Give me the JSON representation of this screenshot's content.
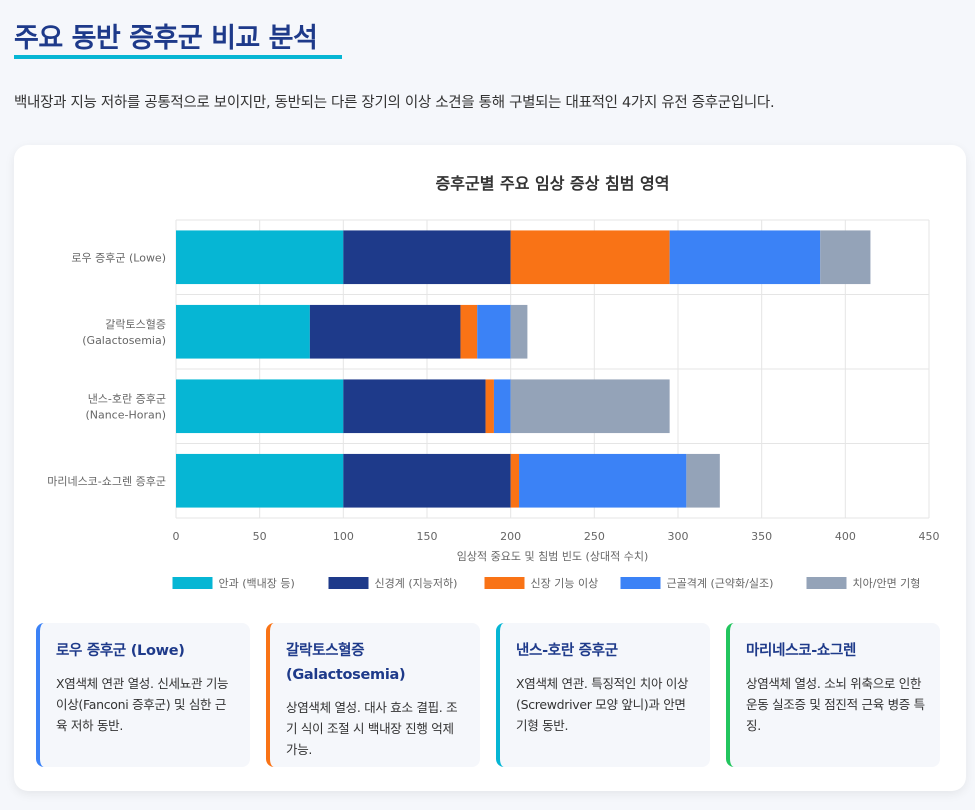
{
  "page": {
    "title": "주요 동반 증후군 비교 분석",
    "subtitle": "백내장과 지능 저하를 공통적으로 보이지만, 동반되는 다른 장기의 이상 소견을 통해 구별되는 대표적인 4가지 유전 증후군입니다."
  },
  "chart_data": {
    "type": "bar",
    "orientation": "horizontal",
    "stacked": true,
    "title": "증후군별 주요 임상 증상 침범 영역",
    "xlabel": "임상적 중요도 및 침범 빈도 (상대적 수치)",
    "ylabel": "",
    "xlim": [
      0,
      450
    ],
    "xticks": [
      0,
      50,
      100,
      150,
      200,
      250,
      300,
      350,
      400,
      450
    ],
    "grid": true,
    "legend_position": "bottom",
    "categories": [
      [
        "로우 증후군 (Lowe)"
      ],
      [
        "갈락토스혈증",
        "(Galactosemia)"
      ],
      [
        "낸스-호란 증후군",
        "(Nance-Horan)"
      ],
      [
        "마리네스코-쇼그렌 증후군"
      ]
    ],
    "series": [
      {
        "name": "안과 (백내장 등)",
        "color": "#06b6d4",
        "values": [
          100,
          80,
          100,
          100
        ]
      },
      {
        "name": "신경계 (지능저하)",
        "color": "#1e3a8a",
        "values": [
          100,
          90,
          85,
          100
        ]
      },
      {
        "name": "신장 기능 이상",
        "color": "#f97316",
        "values": [
          95,
          10,
          5,
          5
        ]
      },
      {
        "name": "근골격계 (근약화/실조)",
        "color": "#3b82f6",
        "values": [
          90,
          20,
          10,
          100
        ]
      },
      {
        "name": "치아/안면 기형",
        "color": "#94a3b8",
        "values": [
          30,
          10,
          95,
          20
        ]
      }
    ]
  },
  "cards": [
    {
      "title": "로우 증후군 (Lowe)",
      "desc": "X염색체 연관 열성. 신세뇨관 기능 이상(Fanconi 증후군) 및 심한 근육 저하 동반.",
      "color": "#3b82f6"
    },
    {
      "title": "갈락토스혈증 (Galactosemia)",
      "desc": "상염색체 열성. 대사 효소 결핍. 조기 식이 조절 시 백내장 진행 억제 가능.",
      "color": "#f97316"
    },
    {
      "title": "낸스-호란 증후군",
      "desc": "X염색체 연관. 특징적인 치아 이상(Screwdriver 모양 앞니)과 안면 기형 동반.",
      "color": "#06b6d4"
    },
    {
      "title": "마리네스코-쇼그렌",
      "desc": "상염색체 열성. 소뇌 위축으로 인한 운동 실조증 및 점진적 근육 병증 특징.",
      "color": "#22c55e"
    }
  ]
}
